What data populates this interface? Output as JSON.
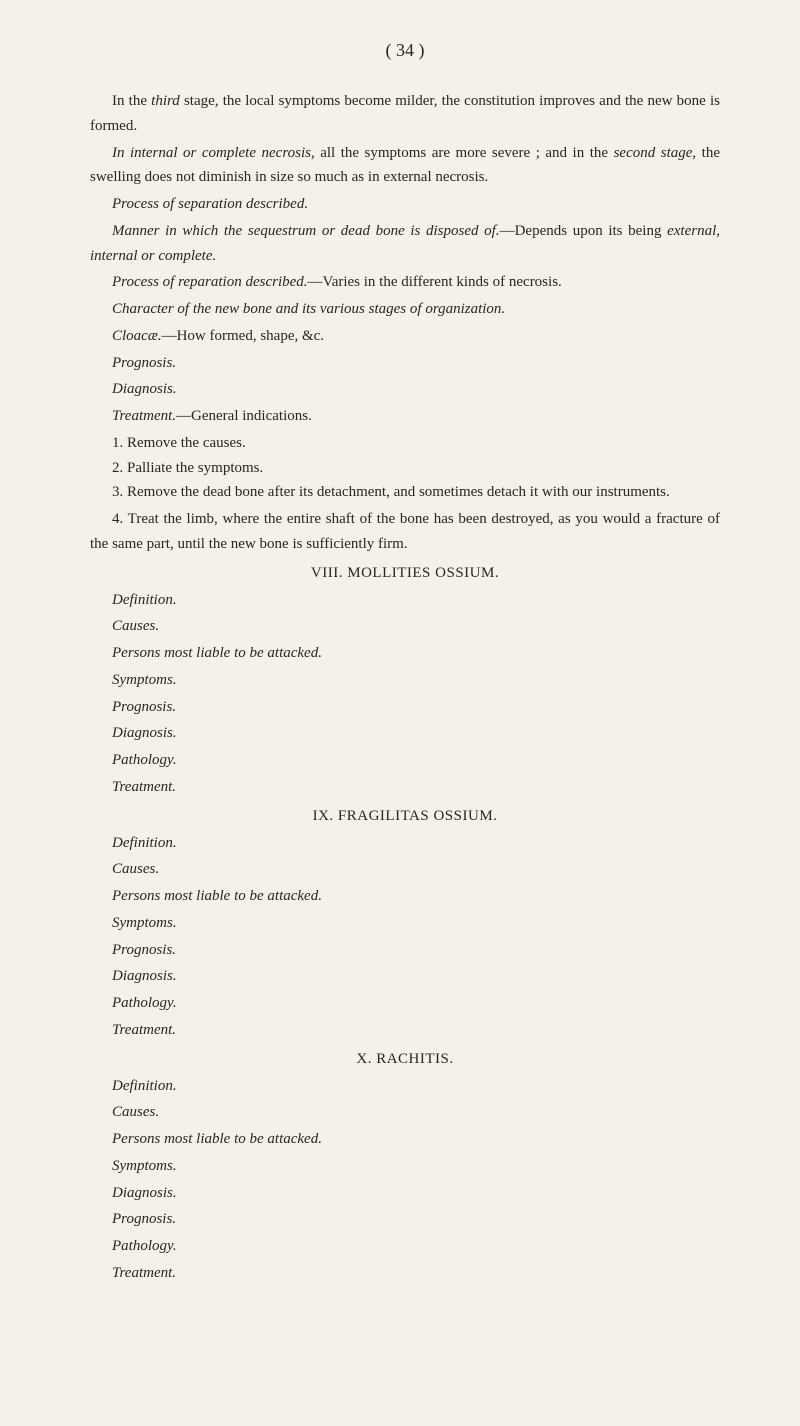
{
  "page_number": "( 34 )",
  "body": {
    "p1": "In the ",
    "p1_italic": "third",
    "p1_cont": " stage, the local symptoms become milder, the constitution improves and the new bone is formed.",
    "p2_italic": "In internal or complete necrosis",
    "p2_cont": ", all the symptoms are more severe ; and in the ",
    "p2_italic2": "second stage",
    "p2_cont2": ", the swelling does not diminish in size so much as in external necrosis.",
    "p3_italic": "Process of separation described.",
    "p4_italic": "Manner in which the sequestrum or dead bone is disposed of.",
    "p4_cont": "—Depends upon its being ",
    "p4_italic2": "external, internal or complete.",
    "p5_italic": "Process of reparation described.",
    "p5_cont": "—Varies in the different kinds of necrosis.",
    "p6_italic": "Character of the new bone and its various stages of organization.",
    "p7_italic": "Cloacæ.",
    "p7_cont": "—How formed, shape, &c.",
    "p8_italic": "Prognosis.",
    "p9_italic": "Diagnosis.",
    "p10_italic": "Treatment.",
    "p10_cont": "—General indications.",
    "li1": "1. Remove the causes.",
    "li2": "2. Palliate the symptoms.",
    "li3": "3. Remove the dead bone after its detachment, and sometimes detach it with our instruments.",
    "li4": "4. Treat the limb, where the entire shaft of the bone has been destroyed, as you would a fracture of the same part, until the new bone is sufficiently firm.",
    "section8_heading": "VIII. MOLLITIES OSSIUM.",
    "s8_def": "Definition.",
    "s8_causes": "Causes.",
    "s8_persons": "Persons most liable to be attacked.",
    "s8_symptoms": "Symptoms.",
    "s8_prognosis": "Prognosis.",
    "s8_diagnosis": "Diagnosis.",
    "s8_pathology": "Pathology.",
    "s8_treatment": "Treatment.",
    "section9_heading": "IX. FRAGILITAS OSSIUM.",
    "s9_def": "Definition.",
    "s9_causes": "Causes.",
    "s9_persons": "Persons most liable to be attacked.",
    "s9_symptoms": "Symptoms.",
    "s9_prognosis": "Prognosis.",
    "s9_diagnosis": "Diagnosis.",
    "s9_pathology": "Pathology.",
    "s9_treatment": "Treatment.",
    "section10_heading": "X. RACHITIS.",
    "s10_def": "Definition.",
    "s10_causes": "Causes.",
    "s10_persons": "Persons most liable to be attacked.",
    "s10_symptoms": "Symptoms.",
    "s10_diagnosis": "Diagnosis.",
    "s10_prognosis": "Prognosis.",
    "s10_pathology": "Pathology.",
    "s10_treatment": "Treatment."
  }
}
